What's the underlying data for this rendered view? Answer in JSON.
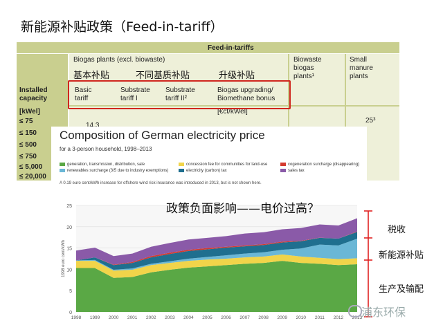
{
  "slide": {
    "title": "新能源补贴政策（Feed-in-tariff）"
  },
  "tariff_table": {
    "header": "Feed-in-tariffs",
    "group_biogas": "Biogas plants (excl. biowaste)",
    "col_biowaste": [
      "Biowaste",
      "biogas",
      "plants¹"
    ],
    "col_small": [
      "Small",
      "manure",
      "plants"
    ],
    "cn_basic": "基本补贴",
    "cn_substrate": "不同基质补贴",
    "cn_upgrade": "升级补贴",
    "row_capacity": [
      "Installed",
      "capacity"
    ],
    "row_unit": "[kWel]",
    "sub_basic": [
      "Basic",
      "tariff"
    ],
    "sub_s1": [
      "Substrate",
      "tariff I"
    ],
    "sub_s2": [
      "Substrate",
      "tariff II²"
    ],
    "sub_upgrade": [
      "Biogas upgrading/",
      "Biomethane bonus"
    ],
    "unit_ct": "[€ct/kWel]",
    "capacities": [
      "≤ 75",
      "≤ 150",
      "≤ 500",
      "≤ 750",
      "≤ 5,000",
      "≤ 20,000"
    ],
    "basic_first": "14.3",
    "small_first": "25³"
  },
  "electricity": {
    "title": "Composition of German electricity price",
    "subtitle": "for a 3-person household, 1998–2013",
    "legend": [
      {
        "label": "generation, transmission, distribution, sale",
        "color": "#5aa845"
      },
      {
        "label": "renewables surcharge (3/5 due to industry exemptions)",
        "color": "#6ab7d6"
      },
      {
        "label": "concession fee for communities for land-use",
        "color": "#f1d44a"
      },
      {
        "label": "electricity (carbon) tax",
        "color": "#1f6f8f"
      },
      {
        "label": "cogeneration surcharge (disappearing)",
        "color": "#d43a2f"
      },
      {
        "label": "sales tax",
        "color": "#8a5aa8"
      }
    ],
    "note": "A 0.19 euro cent/kWh increase for offshore wind risk insurance was introduced in 2013, but is not shown here.",
    "question": "政策负面影响——电价过高？",
    "label_tax": "税收",
    "label_subsidy": "新能源补贴",
    "label_production": "生产及输配",
    "watermark": "浦东环保"
  },
  "chart_data": {
    "type": "area",
    "title": "Composition of German electricity price",
    "subtitle": "for a 3-person household, 1998–2013",
    "ylabel": "1998 euro cent/kWh",
    "ylim": [
      0,
      25
    ],
    "yticks": [
      0,
      5,
      10,
      15,
      20,
      25
    ],
    "x": [
      1998,
      1999,
      2000,
      2001,
      2002,
      2003,
      2004,
      2005,
      2006,
      2007,
      2008,
      2009,
      2010,
      2011,
      2012,
      2013
    ],
    "xticks": [
      "1998",
      "1999",
      "2000",
      "2001",
      "2002",
      "2003",
      "2004",
      "2005",
      "2006",
      "2007",
      "2008",
      "2009",
      "2010",
      "2011",
      "2012",
      "2013"
    ],
    "series": [
      {
        "name": "generation, transmission, distribution, sale",
        "color": "#5aa845",
        "values": [
          10.3,
          10.3,
          8.0,
          8.2,
          9.3,
          9.9,
          10.4,
          10.7,
          11.0,
          11.3,
          11.5,
          12.0,
          11.5,
          11.3,
          11.0,
          11.2
        ]
      },
      {
        "name": "concession fee for communities for land-use",
        "color": "#f1d44a",
        "values": [
          1.7,
          1.7,
          1.7,
          1.7,
          1.7,
          1.6,
          1.6,
          1.6,
          1.5,
          1.5,
          1.5,
          1.5,
          1.5,
          1.4,
          1.4,
          1.4
        ]
      },
      {
        "name": "renewables surcharge (3/5 due to industry exemptions)",
        "color": "#6ab7d6",
        "values": [
          0.1,
          0.2,
          0.2,
          0.3,
          0.3,
          0.4,
          0.5,
          0.6,
          0.8,
          0.9,
          1.0,
          1.1,
          1.9,
          3.1,
          3.2,
          4.6
        ]
      },
      {
        "name": "electricity (carbon) tax",
        "color": "#1f6f8f",
        "values": [
          0.0,
          0.6,
          1.1,
          1.3,
          1.5,
          1.7,
          1.8,
          1.8,
          1.8,
          1.7,
          1.7,
          1.7,
          1.7,
          1.6,
          1.6,
          1.6
        ]
      },
      {
        "name": "cogeneration surcharge (disappearing)",
        "color": "#d43a2f",
        "values": [
          0.0,
          0.0,
          0.1,
          0.2,
          0.3,
          0.3,
          0.3,
          0.3,
          0.2,
          0.2,
          0.2,
          0.2,
          0.1,
          0.03,
          0.0,
          0.1
        ]
      },
      {
        "name": "sales tax",
        "color": "#8a5aa8",
        "values": [
          2.3,
          2.3,
          2.0,
          2.0,
          2.2,
          2.3,
          2.4,
          2.4,
          2.5,
          2.8,
          2.8,
          2.9,
          3.0,
          3.1,
          3.1,
          3.1
        ]
      }
    ]
  }
}
